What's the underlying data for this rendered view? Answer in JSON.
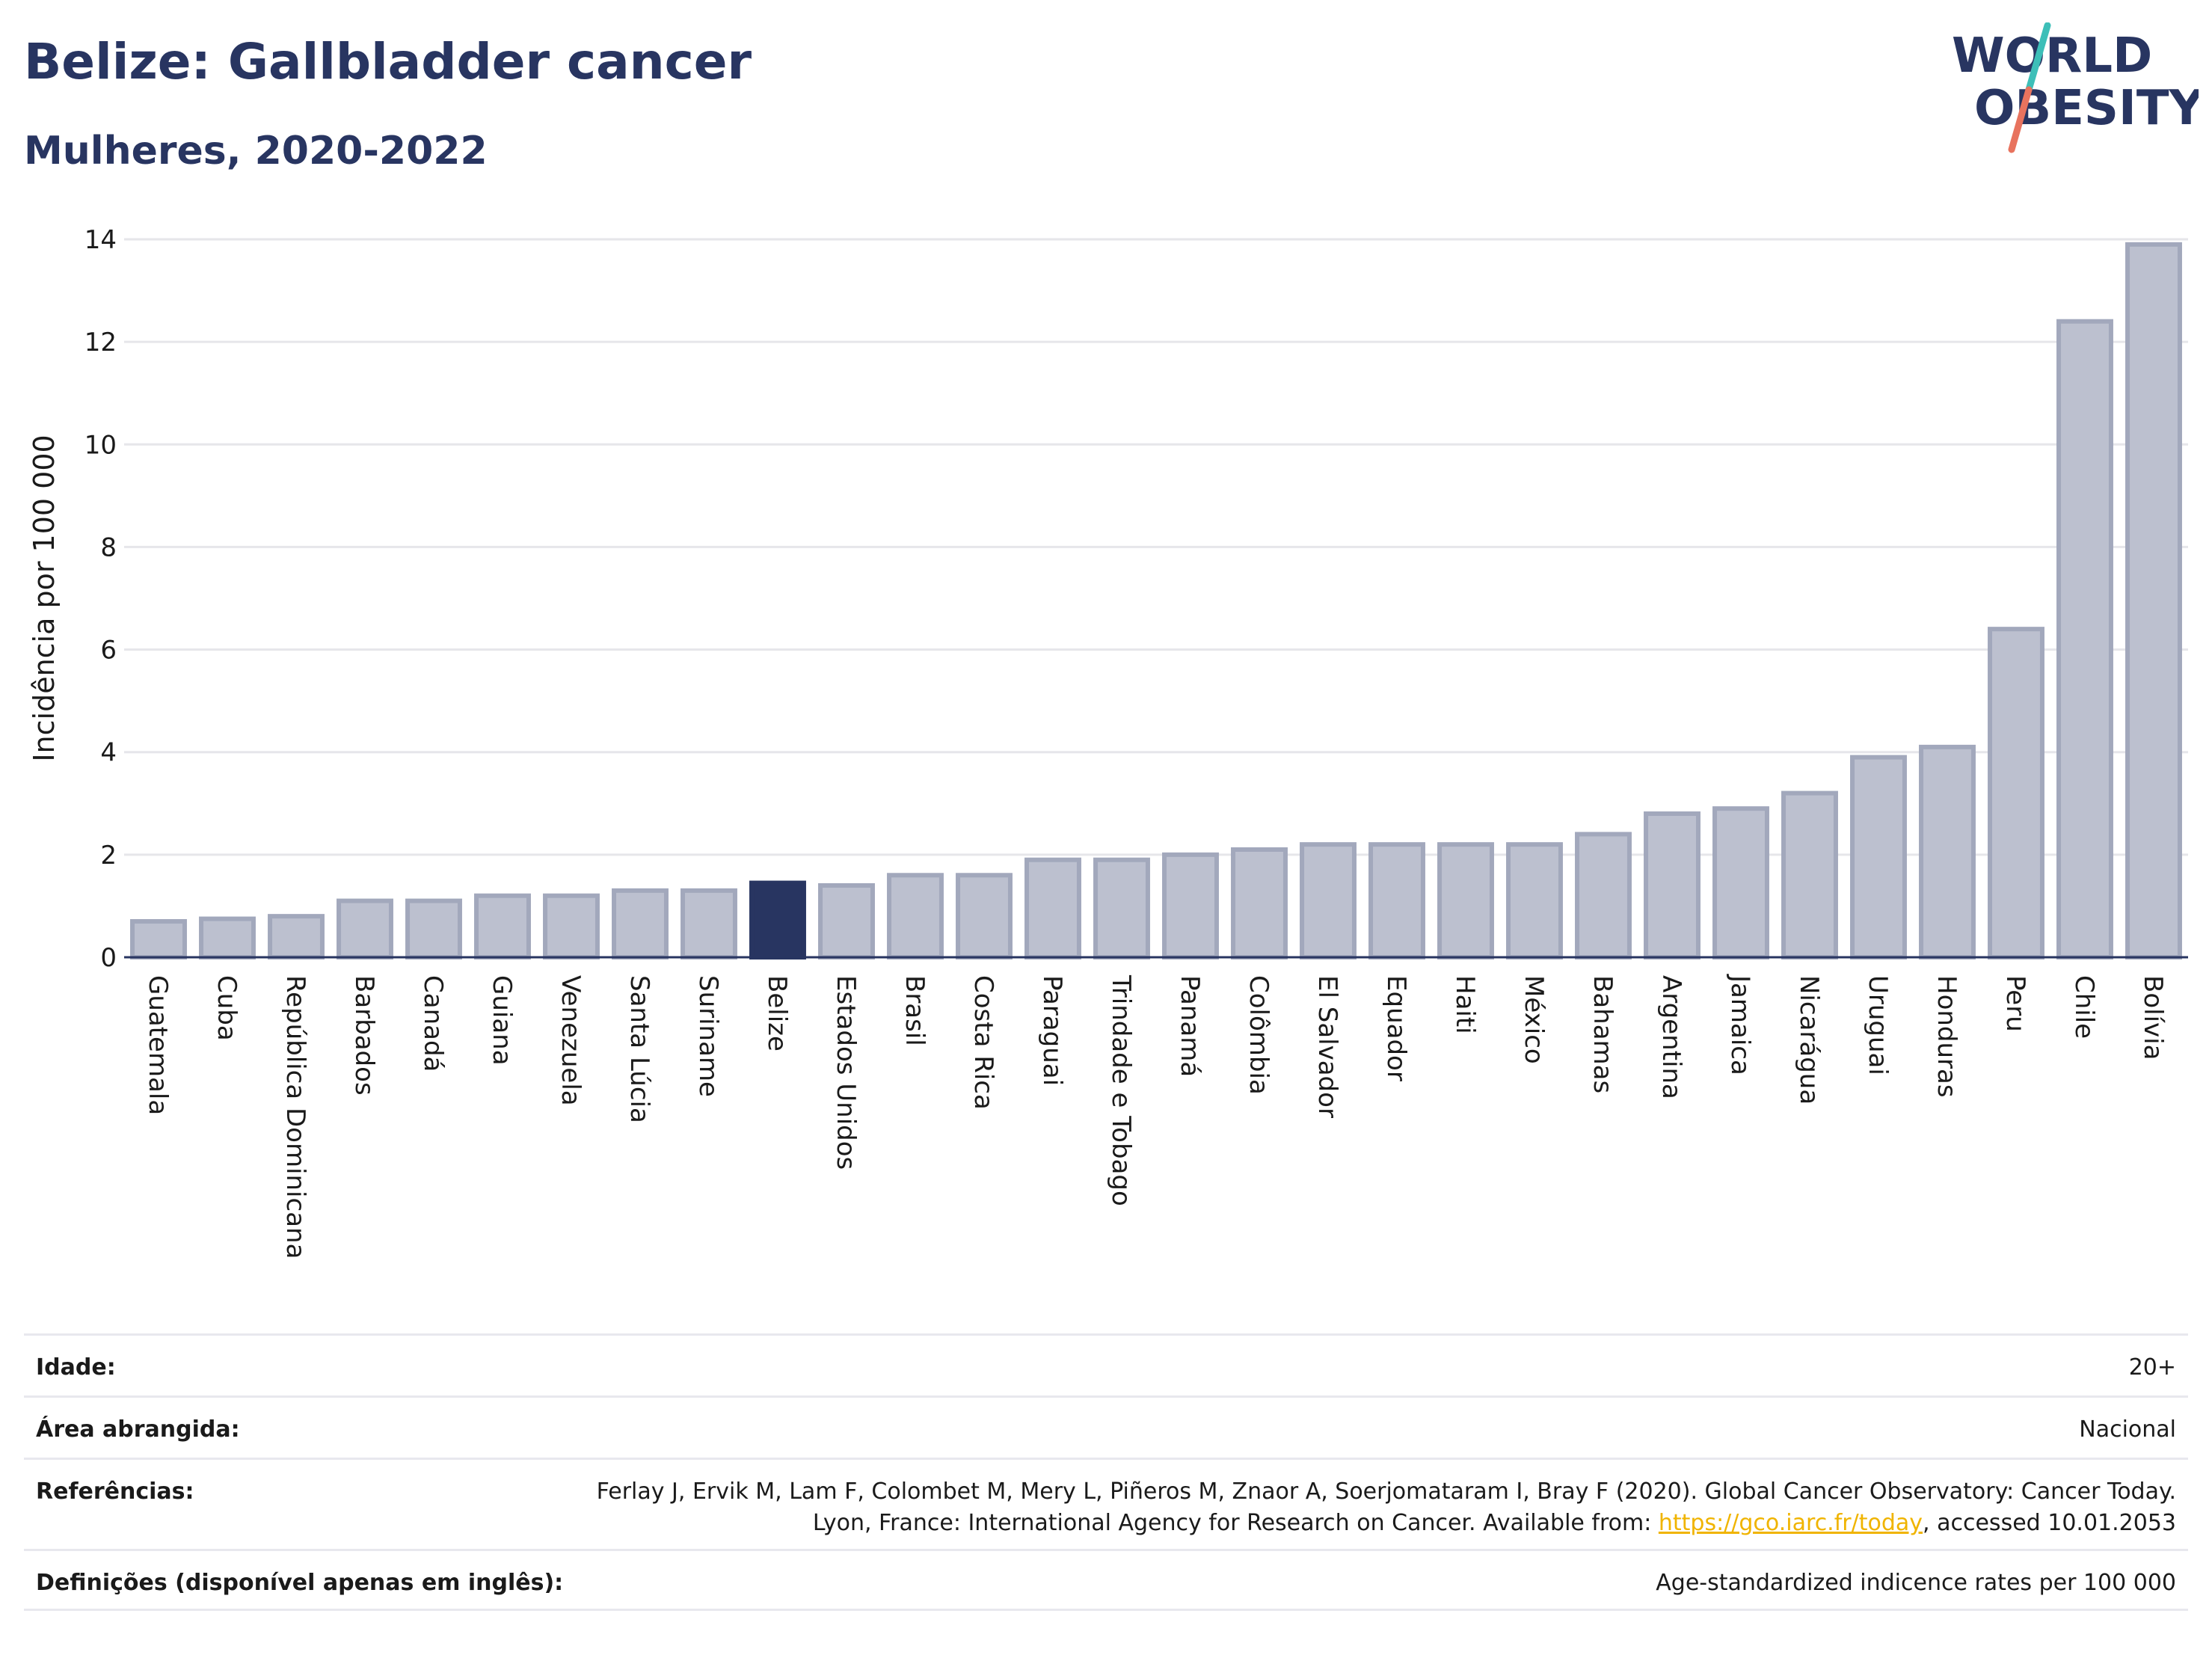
{
  "title": "Belize: Gallbladder cancer",
  "subtitle": "Mulheres, 2020-2022",
  "logo": {
    "line1": "WORLD",
    "line2": "OBESITY",
    "slash_colors": [
      "#3dbfb8",
      "#e8735e"
    ]
  },
  "colors": {
    "bar": "#bcc0cf",
    "bar_border": "#a2a8bc",
    "highlight": "#283561",
    "title": "#283561",
    "link": "#f0b400"
  },
  "chart_data": {
    "type": "bar",
    "ylabel": "Incidência por 100 000",
    "xlabel": "",
    "ylim": [
      0,
      14
    ],
    "yticks": [
      0,
      2,
      4,
      6,
      8,
      10,
      12,
      14
    ],
    "grid": true,
    "highlight": "Belize",
    "categories": [
      "Guatemala",
      "Cuba",
      "República Dominicana",
      "Barbados",
      "Canadá",
      "Guiana",
      "Venezuela",
      "Santa Lúcia",
      "Suriname",
      "Belize",
      "Estados Unidos",
      "Brasil",
      "Costa Rica",
      "Paraguai",
      "Trindade e Tobago",
      "Panamá",
      "Colômbia",
      "El Salvador",
      "Equador",
      "Haiti",
      "México",
      "Bahamas",
      "Argentina",
      "Jamaica",
      "Nicarágua",
      "Uruguai",
      "Honduras",
      "Peru",
      "Chile",
      "Bolívia"
    ],
    "values": [
      0.7,
      0.75,
      0.8,
      1.1,
      1.1,
      1.2,
      1.2,
      1.3,
      1.3,
      1.45,
      1.4,
      1.6,
      1.6,
      1.9,
      1.9,
      2.0,
      2.1,
      2.2,
      2.2,
      2.2,
      2.2,
      2.4,
      2.8,
      2.9,
      3.2,
      3.9,
      4.1,
      6.4,
      12.4,
      13.9
    ]
  },
  "footer": {
    "age_label": "Idade:",
    "age_value": "20+",
    "area_label": "Área abrangida:",
    "area_value": "Nacional",
    "refs_label": "Referências:",
    "refs_text_1": "Ferlay J, Ervik M, Lam F, Colombet M, Mery L, Piñeros M, Znaor A, Soerjomataram I, Bray F (2020). Global Cancer Observatory: Cancer Today. Lyon, France: International Agency for Research on Cancer. Available from: ",
    "refs_link": "https://gco.iarc.fr/today",
    "refs_text_2": ", accessed 10.01.2053",
    "defs_label": "Definições (disponível apenas em inglês):",
    "defs_value": "Age-standardized indicence rates per 100 000"
  }
}
